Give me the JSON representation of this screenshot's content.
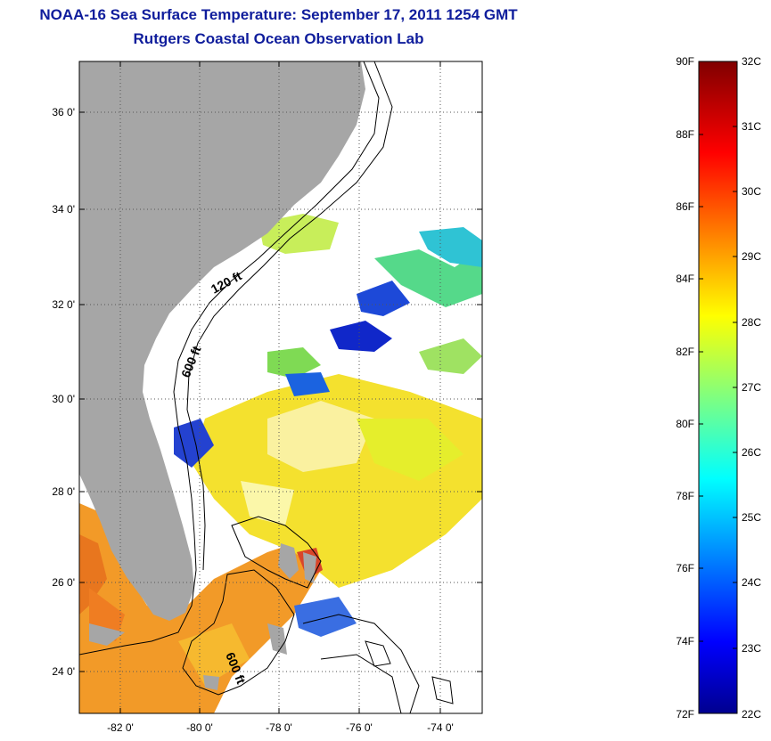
{
  "header": {
    "title": "NOAA-16 Sea Surface Temperature:  September 17, 2011 1254 GMT",
    "subtitle": "Rutgers Coastal Ocean Observation Lab"
  },
  "map": {
    "lat_labels": [
      "36 0'",
      "34 0'",
      "32 0'",
      "30 0'",
      "28 0'",
      "26 0'",
      "24 0'"
    ],
    "lon_labels": [
      "-82 0'",
      "-80 0'",
      "-78 0'",
      "-76 0'",
      "-74 0'"
    ],
    "contour_labels": [
      "120 ft",
      "600 ft",
      "600 ft"
    ],
    "colors": {
      "land": "#a6a6a6",
      "ocean_nodata": "#ffffff",
      "title": "#0f1d9c"
    }
  },
  "colorbar": {
    "fahrenheit_labels": [
      "90F",
      "88F",
      "86F",
      "84F",
      "82F",
      "80F",
      "78F",
      "76F",
      "74F",
      "72F"
    ],
    "celsius_labels": [
      "32C",
      "31C",
      "30C",
      "29C",
      "28C",
      "27C",
      "26C",
      "25C",
      "24C",
      "23C",
      "22C"
    ],
    "colormap": "jet"
  }
}
